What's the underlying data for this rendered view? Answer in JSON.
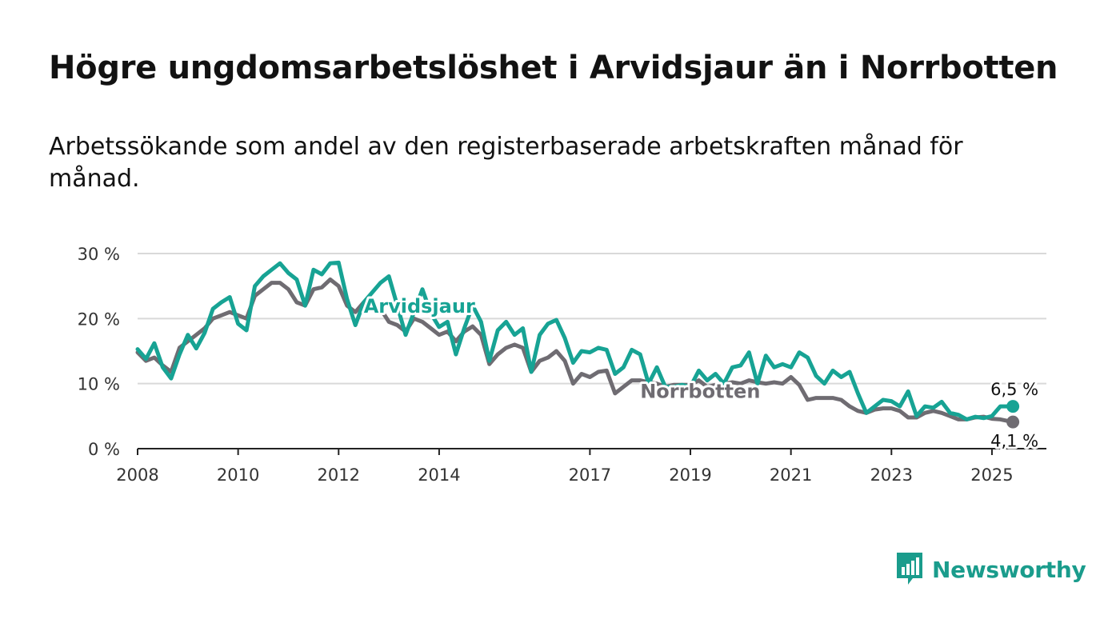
{
  "title": "Högre ungdomsarbetslöshet i Arvidsjaur än i Norrbotten",
  "subtitle": "Arbetssökande som andel av den registerbaserade arbetskraften månad för månad.",
  "brand": {
    "name": "Newsworthy"
  },
  "colors": {
    "arvidsjaur": "#17a394",
    "norrbotten": "#6f6c72",
    "grid": "#d9d9d9",
    "axis": "#222222",
    "text": "#333333"
  },
  "chart_data": {
    "type": "line",
    "title": "Högre ungdomsarbetslöshet i Arvidsjaur än i Norrbotten",
    "xlabel": "",
    "ylabel": "",
    "xlim": [
      "2008-01",
      "2026-02"
    ],
    "ylim": [
      0,
      30
    ],
    "x_ticks": [
      {
        "x": "2008-01",
        "label": "2008"
      },
      {
        "x": "2010-01",
        "label": "2010"
      },
      {
        "x": "2012-01",
        "label": "2012"
      },
      {
        "x": "2014-01",
        "label": "2014"
      },
      {
        "x": "2017-01",
        "label": "2017"
      },
      {
        "x": "2019-01",
        "label": "2019"
      },
      {
        "x": "2021-01",
        "label": "2021"
      },
      {
        "x": "2023-01",
        "label": "2023"
      },
      {
        "x": "2025-01",
        "label": "2025"
      }
    ],
    "y_ticks": [
      {
        "y": 0,
        "label": "0 %"
      },
      {
        "y": 10,
        "label": "10 %"
      },
      {
        "y": 20,
        "label": "20 %"
      },
      {
        "y": 30,
        "label": "30 %"
      }
    ],
    "grid": true,
    "legend": "inline labels on lines",
    "annotations": [
      {
        "series": "Arvidsjaur",
        "text": "6,5 %",
        "x": "2025-06",
        "y": 6.5
      },
      {
        "series": "Norrbotten",
        "text": "4,1 %",
        "x": "2025-06",
        "y": 4.1
      }
    ],
    "series": [
      {
        "name": "Arvidsjaur",
        "points": [
          [
            "2008-01",
            15.3
          ],
          [
            "2008-03",
            13.8
          ],
          [
            "2008-05",
            16.2
          ],
          [
            "2008-07",
            12.5
          ],
          [
            "2008-09",
            10.8
          ],
          [
            "2008-11",
            14.5
          ],
          [
            "2009-01",
            17.5
          ],
          [
            "2009-03",
            15.4
          ],
          [
            "2009-05",
            17.8
          ],
          [
            "2009-07",
            21.5
          ],
          [
            "2009-09",
            22.5
          ],
          [
            "2009-11",
            23.3
          ],
          [
            "2010-01",
            19.2
          ],
          [
            "2010-03",
            18.2
          ],
          [
            "2010-05",
            25.0
          ],
          [
            "2010-07",
            26.5
          ],
          [
            "2010-09",
            27.5
          ],
          [
            "2010-11",
            28.5
          ],
          [
            "2011-01",
            27.0
          ],
          [
            "2011-03",
            26.0
          ],
          [
            "2011-05",
            22.0
          ],
          [
            "2011-07",
            27.5
          ],
          [
            "2011-09",
            26.8
          ],
          [
            "2011-11",
            28.5
          ],
          [
            "2012-01",
            28.6
          ],
          [
            "2012-03",
            23.0
          ],
          [
            "2012-05",
            19.0
          ],
          [
            "2012-07",
            22.5
          ],
          [
            "2012-09",
            24.0
          ],
          [
            "2012-11",
            25.5
          ],
          [
            "2013-01",
            26.5
          ],
          [
            "2013-03",
            22.0
          ],
          [
            "2013-05",
            17.5
          ],
          [
            "2013-07",
            21.0
          ],
          [
            "2013-09",
            24.5
          ],
          [
            "2013-11",
            20.8
          ],
          [
            "2014-01",
            18.7
          ],
          [
            "2014-03",
            19.5
          ],
          [
            "2014-05",
            14.5
          ],
          [
            "2014-07",
            18.5
          ],
          [
            "2014-09",
            22.0
          ],
          [
            "2014-11",
            19.5
          ],
          [
            "2015-01",
            13.5
          ],
          [
            "2015-03",
            18.2
          ],
          [
            "2015-05",
            19.5
          ],
          [
            "2015-07",
            17.5
          ],
          [
            "2015-09",
            18.5
          ],
          [
            "2015-11",
            11.8
          ],
          [
            "2016-01",
            17.5
          ],
          [
            "2016-03",
            19.2
          ],
          [
            "2016-05",
            19.8
          ],
          [
            "2016-07",
            17.0
          ],
          [
            "2016-09",
            13.2
          ],
          [
            "2016-11",
            15.0
          ],
          [
            "2017-01",
            14.8
          ],
          [
            "2017-03",
            15.5
          ],
          [
            "2017-05",
            15.2
          ],
          [
            "2017-07",
            11.5
          ],
          [
            "2017-09",
            12.5
          ],
          [
            "2017-11",
            15.2
          ],
          [
            "2018-01",
            14.5
          ],
          [
            "2018-03",
            10.0
          ],
          [
            "2018-05",
            12.5
          ],
          [
            "2018-07",
            9.5
          ],
          [
            "2018-09",
            9.5
          ],
          [
            "2018-11",
            9.8
          ],
          [
            "2019-01",
            9.5
          ],
          [
            "2019-03",
            12.0
          ],
          [
            "2019-05",
            10.5
          ],
          [
            "2019-07",
            11.5
          ],
          [
            "2019-09",
            10.0
          ],
          [
            "2019-11",
            12.5
          ],
          [
            "2020-01",
            12.8
          ],
          [
            "2020-03",
            14.8
          ],
          [
            "2020-05",
            10.0
          ],
          [
            "2020-07",
            14.3
          ],
          [
            "2020-09",
            12.5
          ],
          [
            "2020-11",
            13.0
          ],
          [
            "2021-01",
            12.5
          ],
          [
            "2021-03",
            14.8
          ],
          [
            "2021-05",
            14.0
          ],
          [
            "2021-07",
            11.2
          ],
          [
            "2021-09",
            10.0
          ],
          [
            "2021-11",
            12.0
          ],
          [
            "2022-01",
            11.0
          ],
          [
            "2022-03",
            11.8
          ],
          [
            "2022-05",
            8.5
          ],
          [
            "2022-07",
            5.5
          ],
          [
            "2022-09",
            6.5
          ],
          [
            "2022-11",
            7.5
          ],
          [
            "2023-01",
            7.3
          ],
          [
            "2023-03",
            6.5
          ],
          [
            "2023-05",
            8.8
          ],
          [
            "2023-07",
            5.0
          ],
          [
            "2023-09",
            6.5
          ],
          [
            "2023-11",
            6.3
          ],
          [
            "2024-01",
            7.2
          ],
          [
            "2024-03",
            5.5
          ],
          [
            "2024-05",
            5.2
          ],
          [
            "2024-07",
            4.5
          ],
          [
            "2024-09",
            4.9
          ],
          [
            "2024-11",
            4.7
          ],
          [
            "2025-01",
            5.0
          ],
          [
            "2025-03",
            6.5
          ],
          [
            "2025-06",
            6.5
          ]
        ]
      },
      {
        "name": "Norrbotten",
        "points": [
          [
            "2008-01",
            14.8
          ],
          [
            "2008-03",
            13.5
          ],
          [
            "2008-05",
            14.0
          ],
          [
            "2008-07",
            12.8
          ],
          [
            "2008-09",
            11.8
          ],
          [
            "2008-11",
            15.5
          ],
          [
            "2009-01",
            16.5
          ],
          [
            "2009-03",
            17.5
          ],
          [
            "2009-05",
            18.5
          ],
          [
            "2009-07",
            20.0
          ],
          [
            "2009-09",
            20.5
          ],
          [
            "2009-11",
            21.0
          ],
          [
            "2010-01",
            20.5
          ],
          [
            "2010-03",
            20.0
          ],
          [
            "2010-05",
            23.5
          ],
          [
            "2010-07",
            24.5
          ],
          [
            "2010-09",
            25.5
          ],
          [
            "2010-11",
            25.5
          ],
          [
            "2011-01",
            24.5
          ],
          [
            "2011-03",
            22.5
          ],
          [
            "2011-05",
            22.0
          ],
          [
            "2011-07",
            24.5
          ],
          [
            "2011-09",
            24.8
          ],
          [
            "2011-11",
            26.0
          ],
          [
            "2012-01",
            25.0
          ],
          [
            "2012-03",
            22.0
          ],
          [
            "2012-05",
            21.0
          ],
          [
            "2012-07",
            22.5
          ],
          [
            "2012-09",
            22.0
          ],
          [
            "2012-11",
            21.5
          ],
          [
            "2013-01",
            19.5
          ],
          [
            "2013-03",
            19.0
          ],
          [
            "2013-05",
            18.0
          ],
          [
            "2013-07",
            20.0
          ],
          [
            "2013-09",
            19.5
          ],
          [
            "2013-11",
            18.5
          ],
          [
            "2014-01",
            17.5
          ],
          [
            "2014-03",
            18.0
          ],
          [
            "2014-05",
            16.5
          ],
          [
            "2014-07",
            18.0
          ],
          [
            "2014-09",
            18.8
          ],
          [
            "2014-11",
            17.5
          ],
          [
            "2015-01",
            13.0
          ],
          [
            "2015-03",
            14.5
          ],
          [
            "2015-05",
            15.5
          ],
          [
            "2015-07",
            16.0
          ],
          [
            "2015-09",
            15.5
          ],
          [
            "2015-11",
            11.8
          ],
          [
            "2016-01",
            13.5
          ],
          [
            "2016-03",
            14.0
          ],
          [
            "2016-05",
            15.0
          ],
          [
            "2016-07",
            13.5
          ],
          [
            "2016-09",
            10.0
          ],
          [
            "2016-11",
            11.5
          ],
          [
            "2017-01",
            11.0
          ],
          [
            "2017-03",
            11.8
          ],
          [
            "2017-05",
            12.0
          ],
          [
            "2017-07",
            8.5
          ],
          [
            "2017-09",
            9.5
          ],
          [
            "2017-11",
            10.5
          ],
          [
            "2018-01",
            10.5
          ],
          [
            "2018-03",
            10.2
          ],
          [
            "2018-05",
            10.0
          ],
          [
            "2018-07",
            9.5
          ],
          [
            "2018-09",
            9.8
          ],
          [
            "2018-11",
            9.8
          ],
          [
            "2019-01",
            9.8
          ],
          [
            "2019-03",
            10.5
          ],
          [
            "2019-05",
            9.5
          ],
          [
            "2019-07",
            9.8
          ],
          [
            "2019-09",
            10.0
          ],
          [
            "2019-11",
            10.2
          ],
          [
            "2020-01",
            10.0
          ],
          [
            "2020-03",
            10.5
          ],
          [
            "2020-05",
            10.2
          ],
          [
            "2020-07",
            10.0
          ],
          [
            "2020-09",
            10.2
          ],
          [
            "2020-11",
            10.0
          ],
          [
            "2021-01",
            11.0
          ],
          [
            "2021-03",
            9.8
          ],
          [
            "2021-05",
            7.5
          ],
          [
            "2021-07",
            7.8
          ],
          [
            "2021-09",
            7.8
          ],
          [
            "2021-11",
            7.8
          ],
          [
            "2022-01",
            7.5
          ],
          [
            "2022-03",
            6.5
          ],
          [
            "2022-05",
            5.8
          ],
          [
            "2022-07",
            5.5
          ],
          [
            "2022-09",
            6.0
          ],
          [
            "2022-11",
            6.2
          ],
          [
            "2023-01",
            6.2
          ],
          [
            "2023-03",
            5.8
          ],
          [
            "2023-05",
            4.8
          ],
          [
            "2023-07",
            4.8
          ],
          [
            "2023-09",
            5.5
          ],
          [
            "2023-11",
            5.8
          ],
          [
            "2024-01",
            5.5
          ],
          [
            "2024-03",
            5.0
          ],
          [
            "2024-05",
            4.5
          ],
          [
            "2024-07",
            4.5
          ],
          [
            "2024-09",
            4.8
          ],
          [
            "2024-11",
            4.9
          ],
          [
            "2025-01",
            4.6
          ],
          [
            "2025-03",
            4.5
          ],
          [
            "2025-06",
            4.1
          ]
        ]
      }
    ]
  }
}
